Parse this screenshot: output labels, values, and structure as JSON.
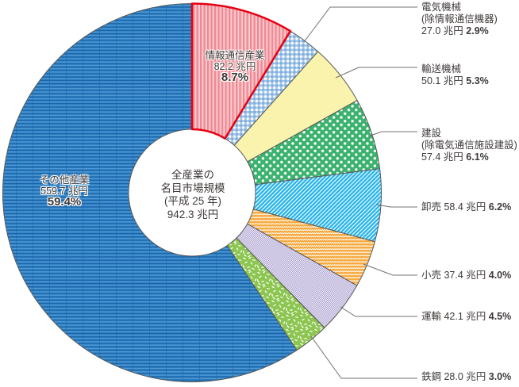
{
  "chart_data": {
    "type": "pie",
    "variant": "donut",
    "legend_position": "right-callouts",
    "center_label": {
      "lines": [
        "全産業の",
        "名目市場規模",
        "(平成 25 年)",
        "942.3 兆円"
      ]
    },
    "unit": "兆円",
    "slices": [
      {
        "name": "情報通信産業",
        "value": 82.2,
        "value_label": "82.2 兆円",
        "pct": 8.7,
        "pct_label": "8.7%",
        "label_placement": "inside",
        "fill": {
          "base": "#f5b3b9",
          "motif": "vertical-stripes",
          "stripe": "#ee8791",
          "light": "#fbdce0",
          "border": "#e60012"
        }
      },
      {
        "name": "電気機械",
        "name_note": "(除情報通信機器)",
        "value": 27.0,
        "value_label": "27.0 兆円",
        "pct": 2.9,
        "pct_label": "2.9%",
        "label_placement": "callout",
        "fill": {
          "base": "#ffffff",
          "motif": "gingham",
          "stripe": "#4f92d2"
        }
      },
      {
        "name": "輸送機械",
        "value": 50.1,
        "value_label": "50.1 兆円",
        "pct": 5.3,
        "pct_label": "5.3%",
        "label_placement": "callout",
        "fill": {
          "base": "#f9f3ad",
          "motif": "plain"
        }
      },
      {
        "name": "建設",
        "name_note": "(除電気通信施設建設)",
        "value": 57.4,
        "value_label": "57.4 兆円",
        "pct": 6.1,
        "pct_label": "6.1%",
        "label_placement": "callout",
        "fill": {
          "base": "#3bb26e",
          "motif": "white-dots"
        }
      },
      {
        "name": "卸売",
        "value": 58.4,
        "value_label": "58.4 兆円",
        "pct": 6.2,
        "pct_label": "6.2%",
        "label_placement": "callout",
        "fill": {
          "base": "#27b4e9",
          "motif": "diagonal-stripes"
        }
      },
      {
        "name": "小売",
        "value": 37.4,
        "value_label": "37.4 兆円",
        "pct": 4.0,
        "pct_label": "4.0%",
        "label_placement": "callout",
        "fill": {
          "base": "#f6a83c",
          "motif": "zigzag"
        }
      },
      {
        "name": "運輸",
        "value": 42.1,
        "value_label": "42.1 兆円",
        "pct": 4.5,
        "pct_label": "4.5%",
        "label_placement": "callout",
        "fill": {
          "base": "#ffffff",
          "motif": "checker",
          "stripe": "#9d90c8"
        }
      },
      {
        "name": "鉄鋼",
        "value": 28.0,
        "value_label": "28.0 兆円",
        "pct": 3.0,
        "pct_label": "3.0%",
        "label_placement": "callout",
        "fill": {
          "base": "#8cc550",
          "motif": "confetti"
        }
      },
      {
        "name": "その他産業",
        "value": 559.7,
        "value_label": "559.7 兆円",
        "pct": 59.4,
        "pct_label": "59.4%",
        "label_placement": "inside",
        "fill": {
          "base": "#2e80c3",
          "motif": "horizontal-stripes",
          "dark": "#1a5fa5",
          "light": "#56a0d8"
        }
      }
    ],
    "colors": {
      "slice_outline": "#5a5857",
      "leader_line": "#717071",
      "text": "#3f3a39",
      "accent_red": "#e60012"
    }
  }
}
